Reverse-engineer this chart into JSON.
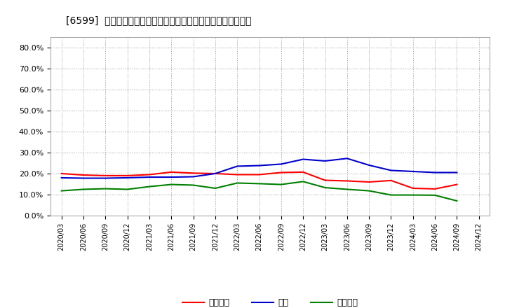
{
  "title": "[6599]  売上債権、在庫、買入債務の総資産に対する比率の推移",
  "labels": [
    "2020/03",
    "2020/06",
    "2020/09",
    "2020/12",
    "2021/03",
    "2021/06",
    "2021/09",
    "2021/12",
    "2022/03",
    "2022/06",
    "2022/09",
    "2022/12",
    "2023/03",
    "2023/06",
    "2023/09",
    "2023/12",
    "2024/03",
    "2024/06",
    "2024/09",
    "2024/12"
  ],
  "売上債権": [
    0.2,
    0.193,
    0.19,
    0.19,
    0.195,
    0.207,
    0.202,
    0.2,
    0.195,
    0.195,
    0.205,
    0.207,
    0.168,
    0.165,
    0.16,
    0.167,
    0.13,
    0.127,
    0.148,
    null
  ],
  "在庫": [
    0.18,
    0.178,
    0.178,
    0.18,
    0.183,
    0.183,
    0.185,
    0.2,
    0.235,
    0.238,
    0.245,
    0.268,
    0.26,
    0.272,
    0.24,
    0.215,
    0.21,
    0.205,
    0.205,
    null
  ],
  "買入債務": [
    0.118,
    0.125,
    0.128,
    0.125,
    0.138,
    0.148,
    0.145,
    0.13,
    0.155,
    0.152,
    0.148,
    0.162,
    0.133,
    0.125,
    0.118,
    0.098,
    0.098,
    0.097,
    0.07,
    null
  ],
  "line_colors": {
    "売上債権": "#ff0000",
    "在庫": "#0000cd",
    "買入債務": "#008000"
  },
  "ylim": [
    0.0,
    0.85
  ],
  "yticks": [
    0.0,
    0.1,
    0.2,
    0.3,
    0.4,
    0.5,
    0.6,
    0.7,
    0.8
  ],
  "background_color": "#ffffff",
  "plot_bg_color": "#ffffff",
  "grid_color": "#aaaaaa",
  "title_fontsize": 11,
  "legend_labels": [
    "売上債権",
    "在庫",
    "買入債務"
  ]
}
